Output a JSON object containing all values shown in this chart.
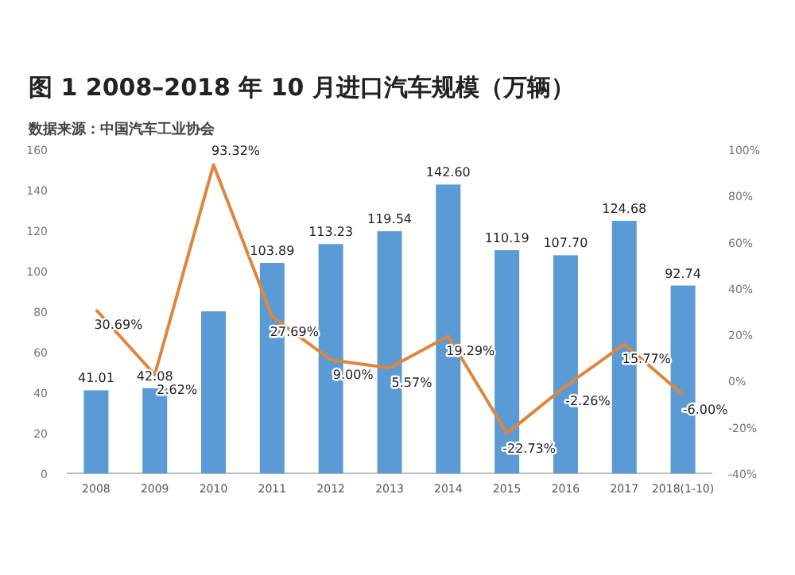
{
  "chart_data": {
    "type": "bar",
    "title": "图 1   2008–2018 年 10 月进口汽车规模（万辆）",
    "subtitle": "数据来源：中国汽车工业协会",
    "categories": [
      "2008",
      "2009",
      "2010",
      "2011",
      "2012",
      "2013",
      "2014",
      "2015",
      "2016",
      "2017",
      "2018(1-10)"
    ],
    "series": [
      {
        "color": "#5b9bd5",
        "values": [
          41.01,
          42.08,
          80,
          103.89,
          113.23,
          119.54,
          142.6,
          110.19,
          107.7,
          124.68,
          92.74
        ],
        "value_labels": [
          "41.01",
          "42.08",
          null,
          "103.89",
          "113.23",
          "119.54",
          "142.60",
          "110.19",
          "107.70",
          "124.68",
          "92.74"
        ]
      },
      {
        "type": "line",
        "axis": "y2",
        "color": "#e0853c",
        "values": [
          30.69,
          2.62,
          93.32,
          27.69,
          9.0,
          5.57,
          19.29,
          -22.73,
          -2.26,
          15.77,
          -6.0
        ],
        "value_labels": [
          "30.69%",
          "2.62%",
          "93.32%",
          "27.69%",
          "9.00%",
          "5.57%",
          "19.29%",
          "-22.73%",
          "-2.26%",
          "15.77%",
          "-6.00%"
        ]
      }
    ],
    "ylim": [
      0,
      160
    ],
    "yticks": [
      0,
      20,
      40,
      60,
      80,
      100,
      120,
      140,
      160
    ],
    "y2lim": [
      -40,
      100
    ],
    "y2ticks": [
      {
        "value": -40,
        "label": "-40%"
      },
      {
        "value": -20,
        "label": "-20%"
      },
      {
        "value": 0,
        "label": "0%"
      },
      {
        "value": 20,
        "label": "20%"
      },
      {
        "value": 40,
        "label": "40%"
      },
      {
        "value": 60,
        "label": "60%"
      },
      {
        "value": 80,
        "label": "80%"
      },
      {
        "value": 100,
        "label": "100%"
      }
    ]
  }
}
